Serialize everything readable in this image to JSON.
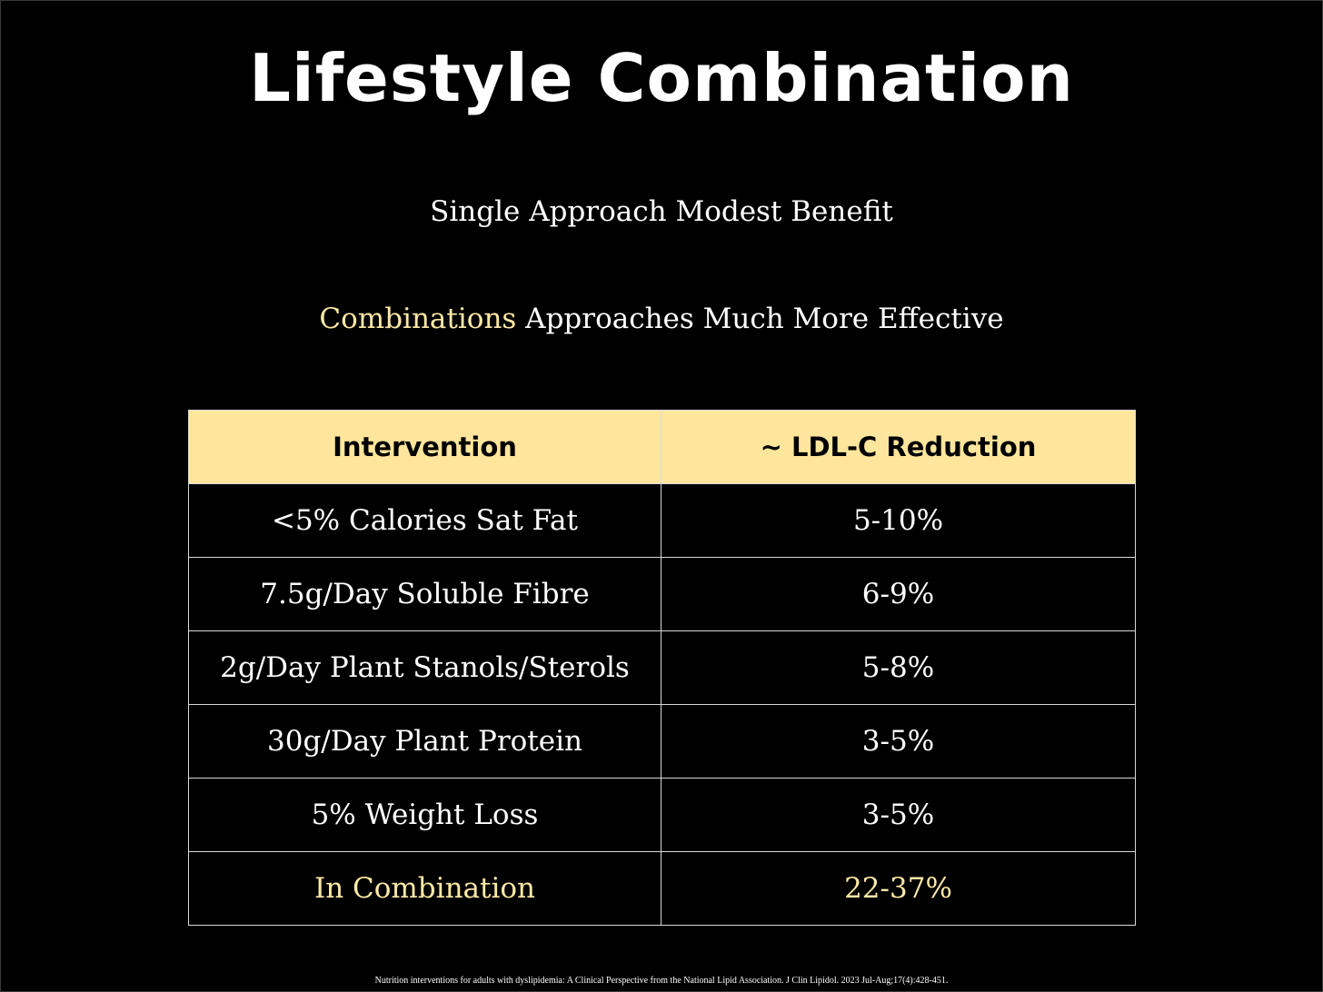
{
  "slide": {
    "title": "Lifestyle Combination",
    "subtitle_1": "Single Approach Modest Benefit",
    "subtitle_2_highlight": "Combinations",
    "subtitle_2_rest": " Approaches Much More Effective",
    "citation": "Nutrition interventions for adults with dyslipidemia: A Clinical Perspective from the National Lipid Association. J Clin Lipidol. 2023 Jul-Aug;17(4):428-451."
  },
  "table": {
    "headers": [
      "Intervention",
      "~ LDL-C Reduction"
    ],
    "rows": [
      {
        "intervention": "<5% Calories Sat Fat",
        "reduction": "5-10%"
      },
      {
        "intervention": "7.5g/Day Soluble Fibre",
        "reduction": "6-9%"
      },
      {
        "intervention": "2g/Day Plant Stanols/Sterols",
        "reduction": "5-8%"
      },
      {
        "intervention": "30g/Day Plant Protein",
        "reduction": "3-5%"
      },
      {
        "intervention": "5% Weight Loss",
        "reduction": "3-5%"
      },
      {
        "intervention": "In Combination",
        "reduction": "22-37%"
      }
    ]
  },
  "colors": {
    "background": "#000000",
    "header_fill": "#ffe69c",
    "highlight_text": "#ffe9a6",
    "text": "#ffffff"
  }
}
